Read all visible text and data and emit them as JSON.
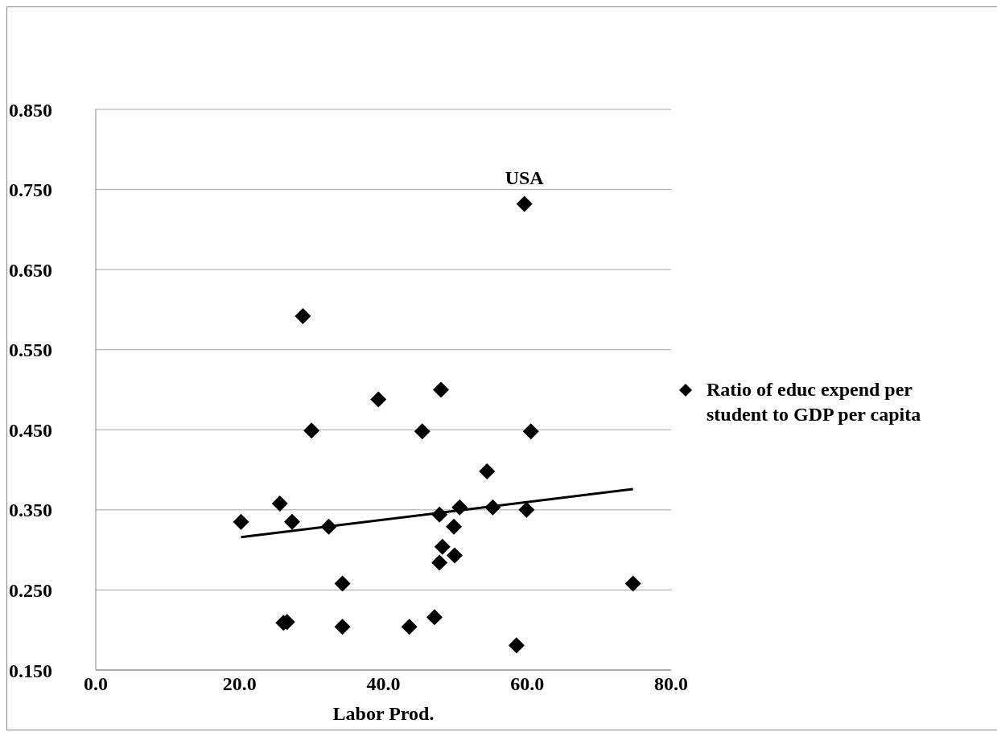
{
  "chart_data": {
    "type": "scatter",
    "xlabel": "Labor Prod.",
    "xlim": [
      0,
      80
    ],
    "xticks": [
      {
        "value": 0,
        "label": "0.0"
      },
      {
        "value": 20,
        "label": "20.0"
      },
      {
        "value": 40,
        "label": "40.0"
      },
      {
        "value": 60,
        "label": "60.0"
      },
      {
        "value": 80,
        "label": "80.0"
      }
    ],
    "ylim": [
      0.15,
      0.85
    ],
    "yticks": [
      {
        "value": 0.15,
        "label": "0.150"
      },
      {
        "value": 0.25,
        "label": "0.250"
      },
      {
        "value": 0.35,
        "label": "0.350"
      },
      {
        "value": 0.45,
        "label": "0.450"
      },
      {
        "value": 0.55,
        "label": "0.550"
      },
      {
        "value": 0.65,
        "label": "0.650"
      },
      {
        "value": 0.75,
        "label": "0.750"
      },
      {
        "value": 0.85,
        "label": "0.850"
      }
    ],
    "grid": "y",
    "legend": "right",
    "annotations": [
      {
        "text": "USA",
        "x": 59.6,
        "y": 0.732
      }
    ],
    "series": [
      {
        "name": "Ratio of educ expend per student to GDP per capita",
        "marker": "diamond",
        "color": "#000000",
        "x": [
          20.2,
          25.6,
          27.3,
          26.1,
          26.6,
          28.8,
          30.0,
          32.4,
          34.3,
          34.3,
          39.3,
          43.6,
          45.4,
          47.1,
          48.0,
          47.8,
          48.2,
          47.8,
          49.8,
          49.9,
          50.6,
          54.4,
          55.2,
          58.5,
          59.6,
          59.9,
          60.5,
          74.7
        ],
        "values": [
          0.335,
          0.358,
          0.335,
          0.209,
          0.21,
          0.592,
          0.449,
          0.329,
          0.258,
          0.204,
          0.488,
          0.204,
          0.448,
          0.216,
          0.5,
          0.344,
          0.304,
          0.284,
          0.329,
          0.293,
          0.353,
          0.398,
          0.353,
          0.181,
          0.732,
          0.35,
          0.448,
          0.258
        ]
      },
      {
        "type": "line",
        "marker": "none",
        "color": "#000000",
        "x": [
          20.2,
          74.7
        ],
        "values": [
          0.316,
          0.376
        ]
      }
    ]
  }
}
